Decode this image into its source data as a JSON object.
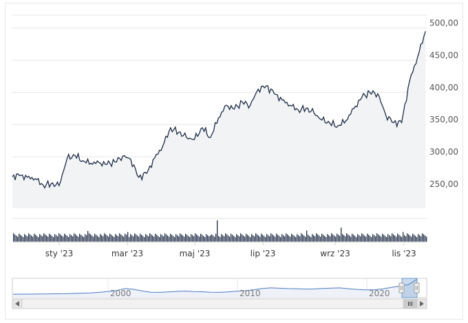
{
  "chart_data": {
    "type": "line",
    "title": "",
    "y_axis": {
      "range": [
        220,
        520
      ],
      "ticks": [
        250,
        300,
        350,
        400,
        450,
        500
      ],
      "tick_labels": [
        "250,00",
        "300,00",
        "350,00",
        "400,00",
        "450,00",
        "500,00"
      ],
      "position": "right",
      "grid": true
    },
    "x_tick_labels": [
      "sty '23",
      "mar '23",
      "maj '23",
      "lip '23",
      "wrz '23",
      "lis '23"
    ],
    "x_range": [
      "2022-12-01",
      "2023-11-30"
    ],
    "price": {
      "dates": [
        "2022-12-01",
        "2022-12-07",
        "2022-12-14",
        "2022-12-21",
        "2022-12-28",
        "2023-01-04",
        "2023-01-11",
        "2023-01-18",
        "2023-01-25",
        "2023-02-01",
        "2023-02-08",
        "2023-02-15",
        "2023-02-22",
        "2023-03-01",
        "2023-03-08",
        "2023-03-15",
        "2023-03-22",
        "2023-03-29",
        "2023-04-05",
        "2023-04-12",
        "2023-04-19",
        "2023-04-26",
        "2023-05-03",
        "2023-05-10",
        "2023-05-17",
        "2023-05-24",
        "2023-05-31",
        "2023-06-07",
        "2023-06-14",
        "2023-06-21",
        "2023-06-28",
        "2023-07-05",
        "2023-07-12",
        "2023-07-19",
        "2023-07-26",
        "2023-08-02",
        "2023-08-09",
        "2023-08-16",
        "2023-08-23",
        "2023-08-30",
        "2023-09-06",
        "2023-09-13",
        "2023-09-20",
        "2023-09-27",
        "2023-10-04",
        "2023-10-11",
        "2023-10-18",
        "2023-10-25",
        "2023-11-01",
        "2023-11-08",
        "2023-11-15",
        "2023-11-22",
        "2023-11-29"
      ],
      "values": [
        269,
        271,
        268,
        266,
        256,
        258,
        255,
        297,
        302,
        294,
        290,
        291,
        288,
        292,
        301,
        296,
        268,
        274,
        298,
        316,
        345,
        338,
        330,
        327,
        345,
        330,
        360,
        380,
        374,
        385,
        380,
        405,
        410,
        398,
        388,
        380,
        373,
        375,
        368,
        357,
        352,
        348,
        356,
        375,
        392,
        400,
        398,
        365,
        353,
        353,
        418,
        455,
        495
      ]
    },
    "volume_bars": "relative daily volume histogram (unlabeled)",
    "navigator": {
      "labels": [
        "2000",
        "2010",
        "2020"
      ],
      "values": [
        40,
        42,
        42,
        45,
        48,
        52,
        55,
        62,
        70,
        80,
        95,
        120,
        150,
        210,
        190,
        140,
        100,
        95,
        110,
        125,
        135,
        120,
        115,
        100,
        95,
        110,
        130,
        145,
        175,
        215,
        230,
        220,
        210,
        205,
        195,
        200,
        215,
        225,
        230,
        205,
        185,
        170,
        175,
        200,
        245,
        285,
        330,
        495
      ]
    }
  }
}
